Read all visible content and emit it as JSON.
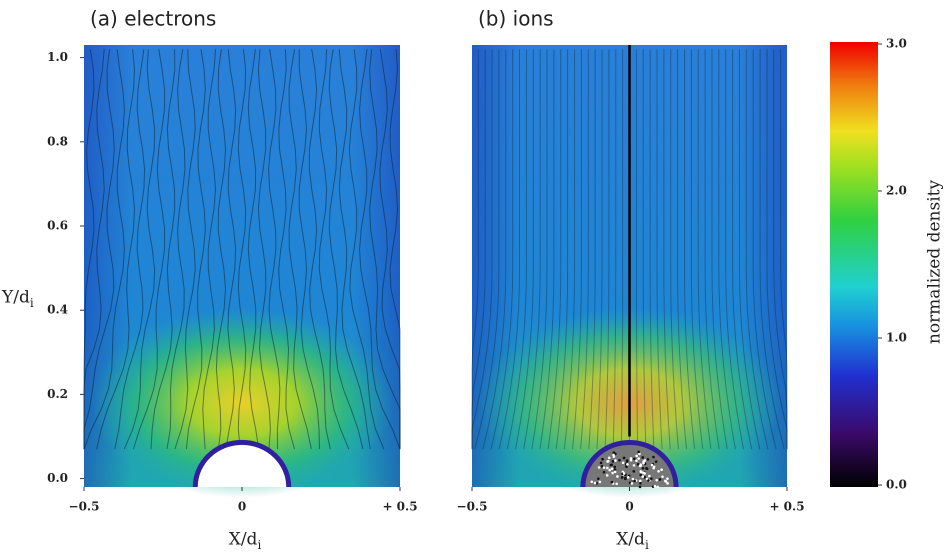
{
  "chart_data": [
    {
      "type": "heatmap",
      "title": "(a) electrons",
      "xlabel": "X/di",
      "ylabel": "Y/di",
      "xlim": [
        -0.5,
        0.5
      ],
      "ylim": [
        -0.02,
        1.03
      ],
      "xticks": [
        {
          "value": -0.5,
          "label": "−0.5"
        },
        0,
        {
          "value": 0.5,
          "label": "+ 0.5"
        }
      ],
      "yticks": [
        {
          "value": 0,
          "label": "0.0"
        },
        0.2,
        0.4,
        0.6,
        0.8,
        {
          "value": 1,
          "label": "1.0"
        }
      ]
    },
    {
      "type": "heatmap",
      "title": "(b) ions",
      "xlabel": "X/di",
      "xlim": [
        -0.5,
        0.5
      ],
      "ylim": [
        -0.02,
        1.03
      ],
      "xticks": [
        {
          "value": -0.5,
          "label": "−0.5"
        },
        0,
        {
          "value": 0.5,
          "label": "+ 0.5"
        }
      ]
    }
  ],
  "colorbar": {
    "label": "normalized density",
    "lim": [
      0,
      3
    ],
    "ticks": [
      {
        "value": 0,
        "label": "0.0"
      },
      {
        "value": 1,
        "label": "1.0"
      },
      {
        "value": 2,
        "label": "2.0"
      },
      {
        "value": 3,
        "label": "3.0"
      }
    ]
  }
}
